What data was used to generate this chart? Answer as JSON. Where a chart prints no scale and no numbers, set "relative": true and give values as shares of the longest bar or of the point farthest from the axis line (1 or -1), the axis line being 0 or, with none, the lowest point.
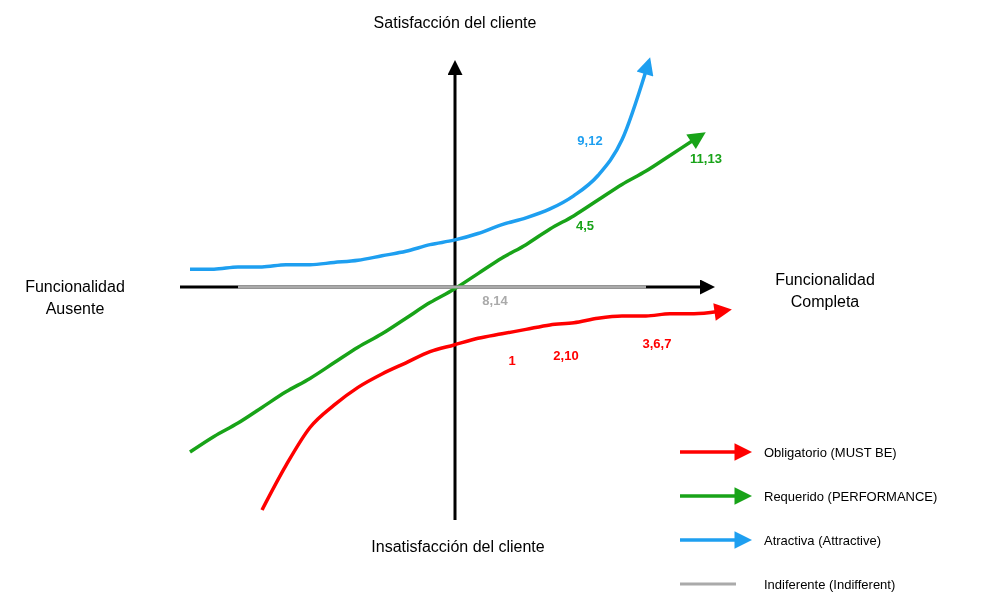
{
  "chart_data": {
    "type": "line",
    "relative": true,
    "xlabel": "Funcionalidad\nCompleta",
    "ylabel": "Satisfacción del cliente",
    "categories": [
      null,
      null,
      null,
      null,
      null,
      null,
      null,
      null,
      null,
      null,
      null,
      null,
      null,
      null,
      null,
      null,
      null,
      null,
      null,
      null,
      null,
      null,
      null
    ],
    "series": [
      {
        "name": "Obligatorio (MUST BE)",
        "color": "#ff0000",
        "values": [
          null,
          null,
          null,
          -1.0,
          -0.8,
          -0.63,
          -0.53,
          -0.45,
          -0.39,
          -0.34,
          -0.29,
          -0.26,
          -0.23,
          -0.21,
          -0.19,
          -0.17,
          -0.16,
          -0.14,
          -0.13,
          -0.13,
          -0.12,
          -0.12,
          -0.11
        ]
      },
      {
        "name": "Requerido (PERFORMANCE)",
        "color": "#18a318",
        "values": [
          -0.74,
          -0.67,
          -0.61,
          -0.54,
          -0.47,
          -0.41,
          -0.34,
          -0.27,
          -0.21,
          -0.14,
          -0.07,
          -0.01,
          0.06,
          0.13,
          0.19,
          0.26,
          0.32,
          0.39,
          0.46,
          0.52,
          0.59,
          0.66,
          null
        ]
      },
      {
        "name": "Atractiva (Attractive)",
        "color": "#1e9ff0",
        "values": [
          0.08,
          0.08,
          0.09,
          0.09,
          0.1,
          0.1,
          0.11,
          0.12,
          0.14,
          0.16,
          0.19,
          0.21,
          0.24,
          0.28,
          0.31,
          0.35,
          0.41,
          0.5,
          0.66,
          0.97,
          null,
          null,
          null
        ]
      },
      {
        "name": "Indiferente (Indifferent)",
        "color": "#aaaaaa",
        "values": [
          null,
          null,
          0,
          0,
          0,
          0,
          0,
          0,
          0,
          0,
          0,
          0,
          0,
          0,
          0,
          0,
          0,
          0,
          0,
          0,
          null,
          null,
          null
        ]
      }
    ],
    "annotations": [
      "Insatisfacción del cliente",
      "Funcionalidad\nAusente",
      "9,12",
      "11,13",
      "4,5",
      "8,14",
      "1",
      "2,10",
      "3,6,7"
    ],
    "legend": "bottom right"
  }
}
